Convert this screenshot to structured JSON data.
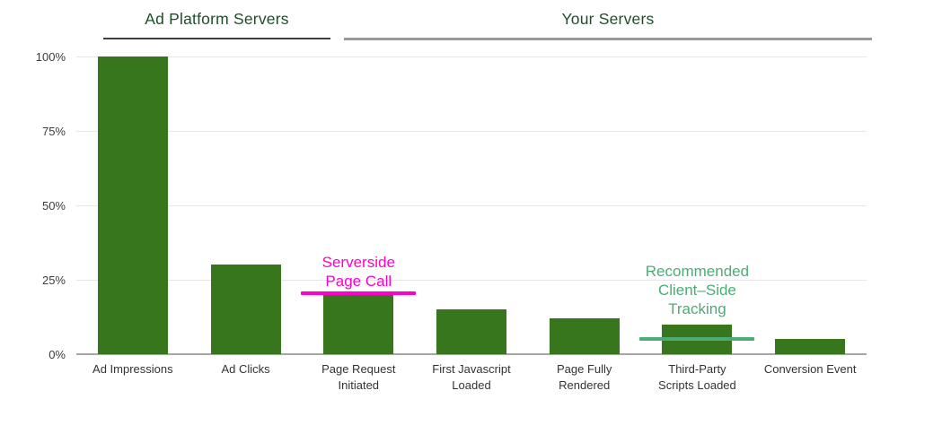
{
  "section_headers": {
    "left": {
      "label": "Ad Platform Servers"
    },
    "right": {
      "label": "Your Servers"
    }
  },
  "chart_data": {
    "type": "bar",
    "title": "",
    "categories": [
      "Ad Impressions",
      "Ad Clicks",
      "Page Request Initiated",
      "First Javascript Loaded",
      "Page Fully Rendered",
      "Third-Party Scripts Loaded",
      "Conversion Event"
    ],
    "category_lines": [
      [
        "Ad Impressions"
      ],
      [
        "Ad Clicks"
      ],
      [
        "Page Request",
        "Initiated"
      ],
      [
        "First Javascript",
        "Loaded"
      ],
      [
        "Page Fully",
        "Rendered"
      ],
      [
        "Third-Party",
        "Scripts Loaded"
      ],
      [
        "Conversion Event"
      ]
    ],
    "values": [
      100,
      30,
      20,
      15,
      12,
      10,
      5
    ],
    "unit": "%",
    "ylim": [
      0,
      100
    ],
    "y_ticks": [
      {
        "label": "100%",
        "value": 100
      },
      {
        "label": "75%",
        "value": 75
      },
      {
        "label": "50%",
        "value": 50
      },
      {
        "label": "25%",
        "value": 25
      },
      {
        "label": "0%",
        "value": 0
      }
    ],
    "grid": true,
    "legend": "none",
    "xlabel": "",
    "ylabel": ""
  },
  "annotations": [
    {
      "id": "serverside-page-call",
      "lines": [
        "Serverside",
        "Page Call"
      ],
      "color": "#ff00cc",
      "target_category": "Page Request Initiated"
    },
    {
      "id": "recommended-client-side-tracking",
      "lines": [
        "Recommended",
        "Client–Side",
        "Tracking"
      ],
      "color": "#4dab76",
      "target_category": "Third-Party Scripts Loaded"
    }
  ],
  "colors": {
    "bar": "#38761d",
    "header_text": "#1e4d2b",
    "left_underline": "#3f3f3f",
    "right_underline": "#9a9a9a",
    "gridline": "#e7e7e7",
    "axis_line": "#a6a6a6",
    "tick_label": "#3c3c3c",
    "category_label": "#333333",
    "background": "#ffffff"
  }
}
